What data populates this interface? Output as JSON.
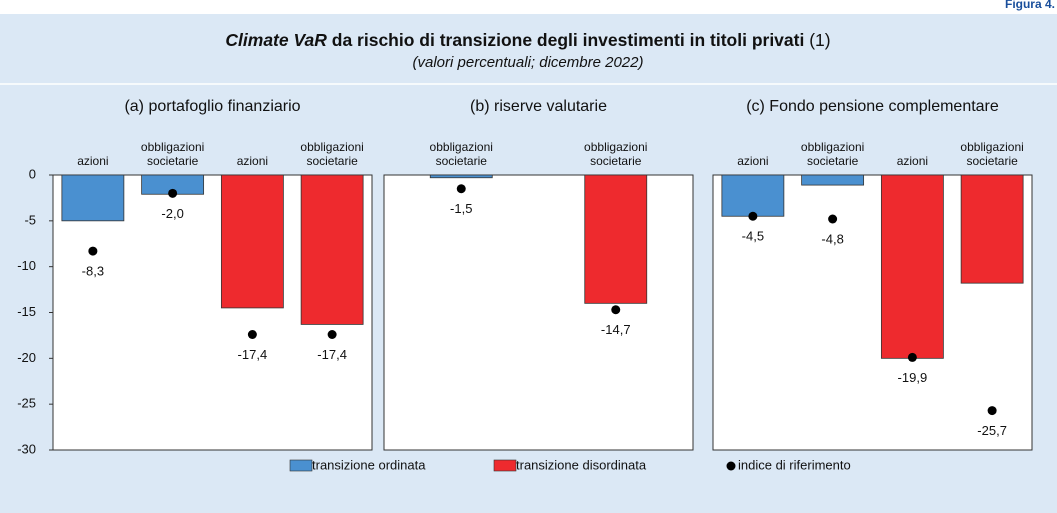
{
  "figure_label": "Figura 4.",
  "title_italic": "Climate VaR",
  "title_bold": " da rischio di transizione degli investimenti in titoli privati",
  "title_note": " (1)",
  "subtitle": "(valori percentuali; dicembre 2022)",
  "chart_data": [
    {
      "type": "bar",
      "title": "(a) portafoglio finanziario",
      "categories": [
        "azioni",
        "obbligazioni societarie",
        "azioni",
        "obbligazioni societarie"
      ],
      "ylim": [
        -30,
        0
      ],
      "yticks": [
        0,
        -5,
        -10,
        -15,
        -20,
        -25,
        -30
      ],
      "series": [
        {
          "name": "transizione ordinata",
          "color": "#4a90d0",
          "values": [
            -5.0,
            -2.1,
            null,
            null
          ]
        },
        {
          "name": "transizione disordinata",
          "color": "#ee2a2e",
          "values": [
            null,
            null,
            -14.5,
            -16.3
          ]
        },
        {
          "name": "indice di riferimento",
          "color": "#000000",
          "values": [
            -8.3,
            -2.0,
            -17.4,
            -17.4
          ],
          "value_labels": [
            "-8,3",
            "-2,0",
            "-17,4",
            "-17,4"
          ]
        }
      ]
    },
    {
      "type": "bar",
      "title": "(b) riserve valutarie",
      "categories": [
        "obbligazioni societarie",
        "obbligazioni societarie"
      ],
      "ylim": [
        -30,
        0
      ],
      "series": [
        {
          "name": "transizione ordinata",
          "color": "#4a90d0",
          "values": [
            -0.3,
            null
          ]
        },
        {
          "name": "transizione disordinata",
          "color": "#ee2a2e",
          "values": [
            null,
            -14.0
          ]
        },
        {
          "name": "indice di riferimento",
          "color": "#000000",
          "values": [
            -1.5,
            -14.7
          ],
          "value_labels": [
            "-1,5",
            "-14,7"
          ]
        }
      ]
    },
    {
      "type": "bar",
      "title": "(c) Fondo pensione complementare",
      "categories": [
        "azioni",
        "obbligazioni societarie",
        "azioni",
        "obbligazioni societarie"
      ],
      "ylim": [
        -30,
        0
      ],
      "series": [
        {
          "name": "transizione ordinata",
          "color": "#4a90d0",
          "values": [
            -4.5,
            -1.1,
            null,
            null
          ]
        },
        {
          "name": "transizione disordinata",
          "color": "#ee2a2e",
          "values": [
            null,
            null,
            -20.0,
            -11.8
          ]
        },
        {
          "name": "indice di riferimento",
          "color": "#000000",
          "values": [
            -4.5,
            -4.8,
            -19.9,
            -25.7
          ],
          "value_labels": [
            "-4,5",
            "-4,8",
            "-19,9",
            "-25,7"
          ]
        }
      ]
    }
  ]
}
